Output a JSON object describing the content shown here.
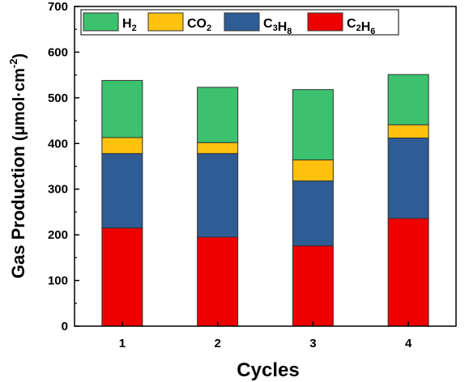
{
  "chart_data": {
    "type": "bar",
    "stacked": true,
    "categories": [
      "1",
      "2",
      "3",
      "4"
    ],
    "series": [
      {
        "name": "C2H6",
        "label_main": "C",
        "label_sub1": "2",
        "label_mid": "H",
        "label_sub2": "6",
        "color": "#ee0000",
        "values": [
          215,
          195,
          176,
          236
        ]
      },
      {
        "name": "C3H8",
        "label_main": "C",
        "label_sub1": "3",
        "label_mid": "H",
        "label_sub2": "8",
        "color": "#2e5c94",
        "values": [
          163,
          183,
          142,
          176
        ]
      },
      {
        "name": "CO2",
        "label_main": "CO",
        "label_sub1": "2",
        "label_mid": "",
        "label_sub2": "",
        "color": "#ffc20e",
        "values": [
          35,
          24,
          46,
          29
        ]
      },
      {
        "name": "H2",
        "label_main": "H",
        "label_sub1": "2",
        "label_mid": "",
        "label_sub2": "",
        "color": "#3cc26e",
        "values": [
          125,
          121,
          154,
          110
        ]
      }
    ],
    "legend_order": [
      "H2",
      "CO2",
      "C3H8",
      "C2H6"
    ],
    "legend_position": "top",
    "xlabel": "Cycles",
    "ylabel_main": "Gas Production",
    "ylabel_unit": "(μmol·cm",
    "ylabel_sup": "-2",
    "ylabel_close": ")",
    "ylim": [
      0,
      700
    ],
    "yticks": [
      0,
      100,
      200,
      300,
      400,
      500,
      600,
      700
    ],
    "grid": false
  }
}
